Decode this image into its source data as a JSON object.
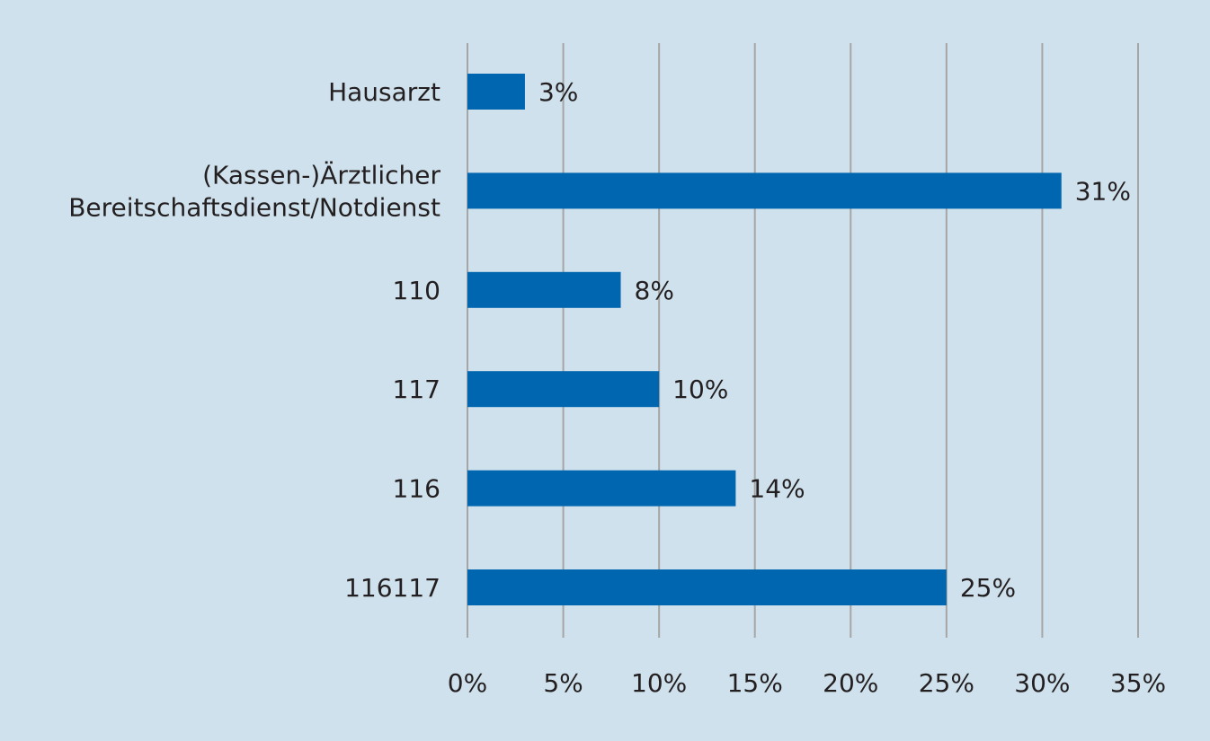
{
  "chart_data": {
    "type": "bar",
    "orientation": "horizontal",
    "categories": [
      [
        "Hausarzt"
      ],
      [
        "(Kassen-)Ärztlicher",
        "Bereitschaftsdienst/Notdienst"
      ],
      [
        "110"
      ],
      [
        "117"
      ],
      [
        "116"
      ],
      [
        "116117"
      ]
    ],
    "values": [
      3,
      31,
      8,
      10,
      14,
      25
    ],
    "value_labels": [
      "3%",
      "31%",
      "8%",
      "10%",
      "14%",
      "25%"
    ],
    "xlim": [
      0,
      35
    ],
    "x_ticks": [
      0,
      5,
      10,
      15,
      20,
      25,
      30,
      35
    ],
    "x_tick_labels": [
      "0%",
      "5%",
      "10%",
      "15%",
      "20%",
      "25%",
      "30%",
      "35%"
    ],
    "grid": "vertical",
    "legend": "none",
    "colors": {
      "background": "#cfe1ed",
      "bar": "#0066b0",
      "grid": "#a6a6a6",
      "text": "#231f20"
    }
  }
}
